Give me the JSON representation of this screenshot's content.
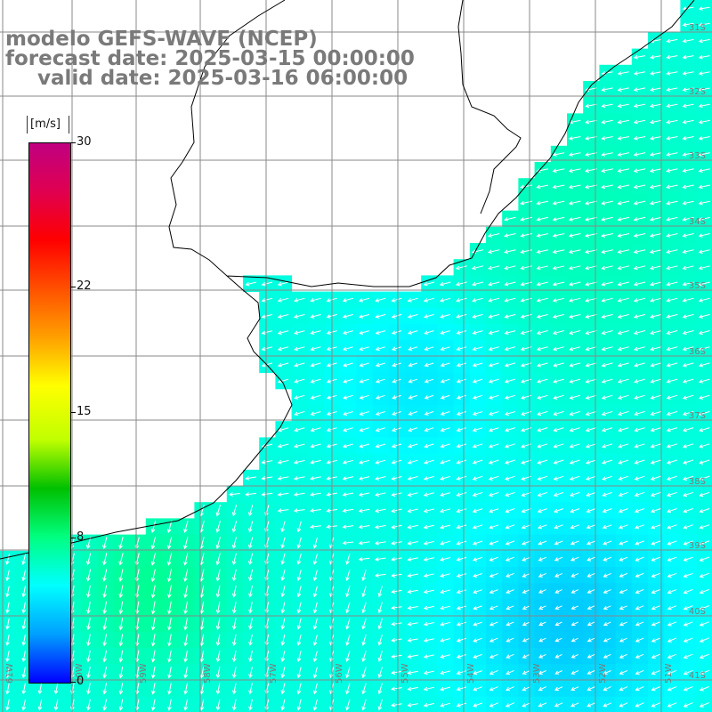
{
  "header": {
    "model_line": "modelo GEFS-WAVE (NCEP)",
    "forecast_line": "forecast date: 2025-03-15 00:00:00",
    "valid_line": "valid date: 2025-03-16 06:00:00"
  },
  "colorbar": {
    "unit": "[m/s]",
    "ticks": [
      "30",
      "22",
      "15",
      "8",
      "0"
    ],
    "tick_values": [
      30,
      22,
      15,
      8,
      0
    ],
    "colors": [
      "#0000ff",
      "#00a0ff",
      "#00ffff",
      "#00ff80",
      "#00c000",
      "#c0ff00",
      "#ffff00",
      "#ffa000",
      "#ff5000",
      "#ff0000",
      "#e00050",
      "#c00080"
    ]
  },
  "map": {
    "lat_labels": [
      "31S",
      "32S",
      "33S",
      "34S",
      "35S",
      "36S",
      "37S",
      "38S",
      "39S",
      "40S",
      "41S"
    ],
    "lon_labels": [
      "61W",
      "60W",
      "59W",
      "58W",
      "57W",
      "56W",
      "55W",
      "54W",
      "53W",
      "52W",
      "51W"
    ],
    "land_color": "#ffffff",
    "grid_color": "#888888",
    "arrow_color": "#ffffff"
  }
}
